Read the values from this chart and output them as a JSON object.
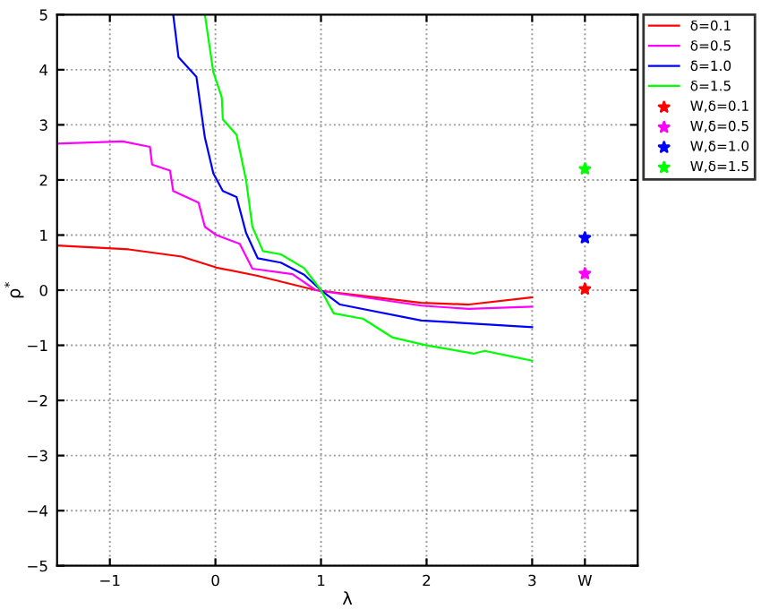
{
  "chart_data": {
    "type": "line",
    "xlabel": "λ",
    "ylabel": "ρ$^{*}$",
    "xlim": [
      -1.5,
      4
    ],
    "xticks": [
      -1,
      0,
      1,
      2,
      3,
      {
        "value": 3.5,
        "label": "W"
      }
    ],
    "ylim": [
      -5,
      5
    ],
    "yticks": [
      -5,
      -4,
      -3,
      -2,
      -1,
      0,
      1,
      2,
      3,
      4,
      5
    ],
    "grid": true,
    "legend": "top right",
    "line_style": "solid",
    "series": [
      {
        "name": "δ=0.1",
        "color": "#ff0000",
        "marker": "none",
        "x": [
          -1.5,
          -0.82,
          -0.32,
          0.01,
          0.4,
          0.95,
          1.95,
          2.4,
          3.0
        ],
        "values": [
          0.81,
          0.74,
          0.61,
          0.41,
          0.26,
          0,
          -0.23,
          -0.26,
          -0.13
        ]
      },
      {
        "name": "δ=0.5",
        "color": "#ff00ff",
        "marker": "none",
        "x": [
          -1.5,
          -0.88,
          -0.62,
          -0.6,
          -0.43,
          -0.4,
          -0.16,
          -0.1,
          0.01,
          0.23,
          0.35,
          0.73,
          0.95,
          1.95,
          2.4,
          3.0
        ],
        "values": [
          2.66,
          2.7,
          2.6,
          2.28,
          2.17,
          1.8,
          1.59,
          1.15,
          1.0,
          0.84,
          0.39,
          0.29,
          0,
          -0.28,
          -0.34,
          -0.3
        ]
      },
      {
        "name": "δ=1.0",
        "color": "#0000ff",
        "marker": "none",
        "x": [
          -0.4,
          -0.35,
          -0.18,
          -0.1,
          -0.02,
          0.07,
          0.2,
          0.29,
          0.4,
          0.62,
          0.84,
          1.0,
          1.18,
          1.95,
          3.0
        ],
        "values": [
          5,
          4.23,
          3.87,
          2.77,
          2.12,
          1.8,
          1.69,
          1.04,
          0.58,
          0.5,
          0.28,
          0,
          -0.26,
          -0.55,
          -0.67
        ]
      },
      {
        "name": "δ=1.5",
        "color": "#00ff00",
        "marker": "none",
        "x": [
          -0.1,
          -0.02,
          0.06,
          0.07,
          0.2,
          0.29,
          0.35,
          0.45,
          0.62,
          0.84,
          1.0,
          1.12,
          1.4,
          1.68,
          2.0,
          2.45,
          2.55,
          2.8,
          3.0
        ],
        "values": [
          5,
          3.96,
          3.5,
          3.1,
          2.82,
          2.0,
          1.15,
          0.71,
          0.65,
          0.4,
          0,
          -0.42,
          -0.52,
          -0.86,
          -1.0,
          -1.15,
          -1.1,
          -1.2,
          -1.28
        ]
      },
      {
        "name": "W,δ=0.1",
        "type": "scatter",
        "color": "#ff0000",
        "marker": "star",
        "x": [
          3.5
        ],
        "values": [
          0.02
        ]
      },
      {
        "name": "W,δ=0.5",
        "type": "scatter",
        "color": "#ff00ff",
        "marker": "star",
        "x": [
          3.5
        ],
        "values": [
          0.3
        ]
      },
      {
        "name": "W,δ=1.0",
        "type": "scatter",
        "color": "#0000ff",
        "marker": "star",
        "x": [
          3.5
        ],
        "values": [
          0.95
        ]
      },
      {
        "name": "W,δ=1.5",
        "type": "scatter",
        "color": "#00ff00",
        "marker": "star",
        "x": [
          3.5
        ],
        "values": [
          2.2
        ]
      }
    ]
  }
}
